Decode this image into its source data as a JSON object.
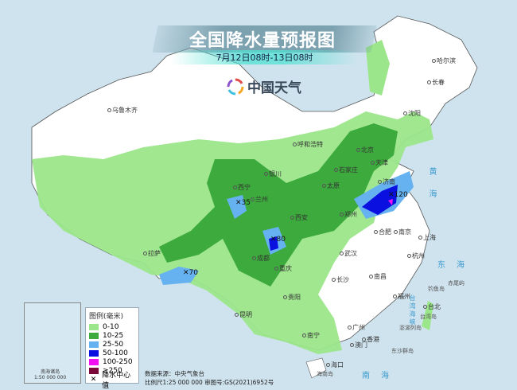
{
  "header": {
    "title": "全国降水量预报图",
    "subtitle": "7月12日08时-13日08时",
    "logo_text": "中国天气"
  },
  "legend": {
    "title": "图例(毫米)",
    "items": [
      {
        "label": "0-10",
        "color": "#9be68a"
      },
      {
        "label": "10-25",
        "color": "#3daa3d"
      },
      {
        "label": "25-50",
        "color": "#66b2f0"
      },
      {
        "label": "50-100",
        "color": "#0a10e0"
      },
      {
        "label": "100-250",
        "color": "#f010f0"
      },
      {
        "label": "≥250",
        "color": "#7a0a3a"
      }
    ],
    "center_label": "降水中心值"
  },
  "source": {
    "line1": "数据来源：中央气象台",
    "line2": "比例尺1:25 000 000     审图号:GS(2021)6952号"
  },
  "inset": {
    "label": "南海诸岛",
    "scale": "1:50 000 000"
  },
  "cities": [
    {
      "name": "哈尔滨"
    },
    {
      "name": "长春"
    },
    {
      "name": "沈阳"
    },
    {
      "name": "乌鲁木齐"
    },
    {
      "name": "呼和浩特"
    },
    {
      "name": "北京"
    },
    {
      "name": "天津"
    },
    {
      "name": "石家庄"
    },
    {
      "name": "银川"
    },
    {
      "name": "太原"
    },
    {
      "name": "济南"
    },
    {
      "name": "西宁"
    },
    {
      "name": "兰州"
    },
    {
      "name": "郑州"
    },
    {
      "name": "西安"
    },
    {
      "name": "合肥"
    },
    {
      "name": "南京"
    },
    {
      "name": "上海"
    },
    {
      "name": "拉萨"
    },
    {
      "name": "成都"
    },
    {
      "name": "武汉"
    },
    {
      "name": "杭州"
    },
    {
      "name": "重庆"
    },
    {
      "name": "长沙"
    },
    {
      "name": "南昌"
    },
    {
      "name": "贵阳"
    },
    {
      "name": "福州"
    },
    {
      "name": "台北"
    },
    {
      "name": "昆明"
    },
    {
      "name": "南宁"
    },
    {
      "name": "广州"
    },
    {
      "name": "香港"
    },
    {
      "name": "澳门"
    },
    {
      "name": "海口"
    }
  ],
  "seas": [
    {
      "name": "黄海"
    },
    {
      "name": "东海"
    },
    {
      "name": "南海"
    },
    {
      "name": "台湾海峡"
    }
  ],
  "islands": [
    {
      "name": "钓鱼岛"
    },
    {
      "name": "赤尾屿"
    },
    {
      "name": "台湾岛"
    },
    {
      "name": "澎湖列岛"
    },
    {
      "name": "东沙群岛"
    },
    {
      "name": "海南岛"
    }
  ],
  "rain_centers": [
    {
      "value": "35"
    },
    {
      "value": "80"
    },
    {
      "value": "120"
    },
    {
      "value": "70"
    }
  ]
}
